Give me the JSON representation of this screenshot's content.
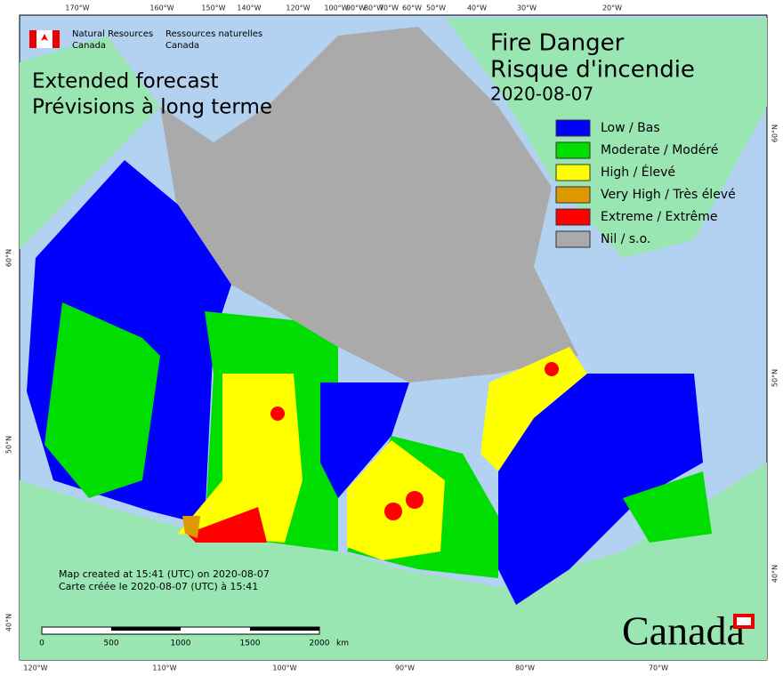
{
  "header": {
    "agency_en": "Natural Resources",
    "agency_en_2": "Canada",
    "agency_fr": "Ressources naturelles",
    "agency_fr_2": "Canada"
  },
  "title": {
    "en": "Fire Danger",
    "fr": "Risque d'incendie",
    "date": "2020-08-07"
  },
  "subtitle": [
    "Extended forecast",
    "Prévisions à long terme"
  ],
  "legend": [
    {
      "label": "Low / Bas",
      "color": "#0000ff"
    },
    {
      "label": "Moderate / Modéré",
      "color": "#00dd00"
    },
    {
      "label": "High / Élevé",
      "color": "#ffff00"
    },
    {
      "label": "Very High / Très élevé",
      "color": "#dd9900"
    },
    {
      "label": "Extreme / Extrême",
      "color": "#ff0000"
    },
    {
      "label": "Nil / s.o.",
      "color": "#aaaaaa"
    }
  ],
  "graticule": {
    "top": [
      "170°W",
      "160°W",
      "150°W",
      "140°W",
      "120°W",
      "100°W",
      "90°W",
      "80°W",
      "70°W",
      "60°W",
      "50°W",
      "40°W",
      "30°W",
      "20°W"
    ],
    "bottom": [
      "120°W",
      "110°W",
      "100°W",
      "90°W",
      "80°W",
      "70°W"
    ],
    "left": [
      "60°N",
      "50°N",
      "40°N"
    ],
    "right": [
      "60°N",
      "50°N",
      "40°N"
    ]
  },
  "notes": [
    "Map created at 15:41 (UTC) on 2020-08-07",
    "Carte créée le 2020-08-07 (UTC) à 15:41"
  ],
  "scale": {
    "labels": [
      "0",
      "500",
      "1000",
      "1500",
      "2000"
    ],
    "unit": "km"
  },
  "wordmark": "Canada"
}
